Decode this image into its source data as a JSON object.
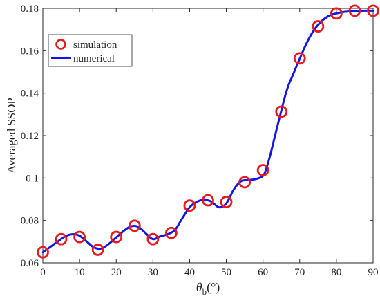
{
  "chart_data": {
    "type": "line",
    "xlabel_symbol": "θ",
    "xlabel_sub": "b",
    "xlabel_suffix": "(°)",
    "ylabel": "Averaged SSOP",
    "xlim": [
      0,
      90
    ],
    "ylim": [
      0.06,
      0.18
    ],
    "xticks": [
      0,
      10,
      20,
      30,
      40,
      50,
      60,
      70,
      80,
      90
    ],
    "xtick_labels": [
      "0",
      "10",
      "20",
      "30",
      "40",
      "50",
      "60",
      "70",
      "80",
      "90"
    ],
    "yticks": [
      0.06,
      0.08,
      0.1,
      0.12,
      0.14,
      0.16,
      0.18
    ],
    "ytick_labels": [
      "0.06",
      "0.08",
      "0.1",
      "0.12",
      "0.14",
      "0.16",
      "0.18"
    ],
    "grid": false,
    "legend_position": "top-left",
    "series": [
      {
        "name": "simulation",
        "style": "markers",
        "marker": "circle",
        "color": "#e8191c",
        "x": [
          0,
          5,
          10,
          15,
          20,
          25,
          30,
          35,
          40,
          45,
          50,
          55,
          60,
          65,
          70,
          75,
          80,
          85,
          90
        ],
        "y": [
          0.065,
          0.0712,
          0.0722,
          0.0662,
          0.0722,
          0.0775,
          0.0712,
          0.0741,
          0.087,
          0.0895,
          0.0887,
          0.098,
          0.1037,
          0.1313,
          0.1564,
          0.1715,
          0.1776,
          0.1789,
          0.1789
        ]
      },
      {
        "name": "numerical",
        "style": "line",
        "color": "#1515e6",
        "x": [
          0,
          2,
          4,
          6,
          8,
          10,
          12,
          14,
          16,
          18,
          20,
          22,
          24,
          26,
          28,
          30,
          32,
          34,
          36,
          38,
          40,
          42,
          44,
          46,
          48,
          50,
          52,
          54,
          56,
          58,
          60,
          61,
          62,
          63,
          64,
          65,
          66,
          67,
          68,
          70,
          72,
          74,
          76,
          78,
          80,
          82,
          84,
          86,
          88,
          90
        ],
        "y": [
          0.065,
          0.0675,
          0.07,
          0.0724,
          0.0735,
          0.0728,
          0.07,
          0.0672,
          0.0668,
          0.069,
          0.072,
          0.075,
          0.0772,
          0.077,
          0.074,
          0.0712,
          0.0725,
          0.0735,
          0.0755,
          0.081,
          0.0862,
          0.0888,
          0.0897,
          0.0888,
          0.0862,
          0.088,
          0.0945,
          0.0985,
          0.099,
          0.0995,
          0.101,
          0.105,
          0.111,
          0.118,
          0.125,
          0.1318,
          0.1385,
          0.144,
          0.148,
          0.1562,
          0.164,
          0.17,
          0.174,
          0.1765,
          0.1776,
          0.1783,
          0.1786,
          0.1788,
          0.1789,
          0.1789
        ]
      }
    ]
  }
}
